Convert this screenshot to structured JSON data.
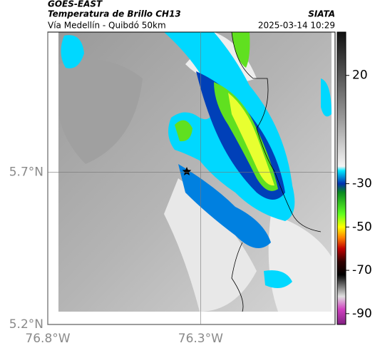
{
  "header": {
    "source": "GOES-EAST",
    "product": "Temperatura de Brillo CH13",
    "agency": "SIATA",
    "region": "Vía Medellín - Quibdó 50km",
    "datetime": "2025-03-14 10:29"
  },
  "map": {
    "xlim": [
      -76.8,
      -75.86
    ],
    "ylim": [
      5.2,
      6.16
    ],
    "xticks": [
      {
        "value": -76.8,
        "label": "76.8°W"
      },
      {
        "value": -76.3,
        "label": "76.3°W"
      }
    ],
    "yticks": [
      {
        "value": 5.2,
        "label": "5.2°N"
      },
      {
        "value": 5.7,
        "label": "5.7°N"
      }
    ]
  },
  "colorbar": {
    "clim": [
      40,
      -95
    ],
    "ticks": [
      20,
      -30,
      -50,
      -70,
      -90
    ],
    "color_stops": [
      {
        "value": 40,
        "color": "#111111"
      },
      {
        "value": 0,
        "color": "#9a9a9a"
      },
      {
        "value": -22,
        "color": "#f4f4f4"
      },
      {
        "value": -24,
        "color": "#00e8ff"
      },
      {
        "value": -30,
        "color": "#0030b0"
      },
      {
        "value": -34,
        "color": "#0a8a20"
      },
      {
        "value": -44,
        "color": "#60ff20"
      },
      {
        "value": -50,
        "color": "#ffff00"
      },
      {
        "value": -55,
        "color": "#ff8000"
      },
      {
        "value": -60,
        "color": "#c00000"
      },
      {
        "value": -66,
        "color": "#300000"
      },
      {
        "value": -72,
        "color": "#000000"
      },
      {
        "value": -82,
        "color": "#e0e0e0"
      },
      {
        "value": -88,
        "color": "#d040c0"
      },
      {
        "value": -95,
        "color": "#802080"
      }
    ]
  }
}
